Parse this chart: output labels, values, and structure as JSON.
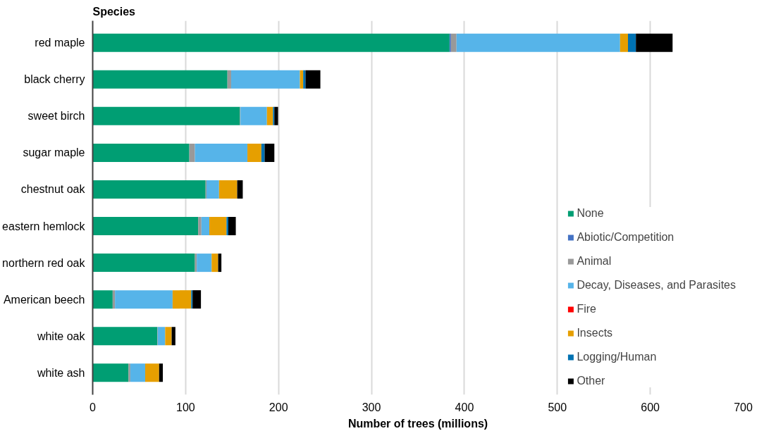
{
  "chart_data": {
    "type": "bar",
    "orientation": "horizontal",
    "stacked": true,
    "ylabel": "Species",
    "xlabel": "Number of trees (millions)",
    "categories": [
      "red maple",
      "black cherry",
      "sweet birch",
      "sugar maple",
      "chestnut oak",
      "eastern hemlock",
      "northern red oak",
      "American beech",
      "white oak",
      "white ash"
    ],
    "series": [
      {
        "name": "None",
        "color": "#009e73",
        "values": [
          384,
          145,
          158.5,
          104,
          121.5,
          113.5,
          110,
          21.5,
          69.5,
          38.5
        ]
      },
      {
        "name": "Abiotic/Competition",
        "color": "#4472c4",
        "values": [
          1.5,
          0,
          0,
          0,
          0,
          0,
          0,
          0,
          0,
          0
        ]
      },
      {
        "name": "Animal",
        "color": "#999999",
        "values": [
          6,
          4,
          0.5,
          6,
          1,
          3.5,
          2,
          2.5,
          0.5,
          2
        ]
      },
      {
        "name": "Decay, Diseases, and Parasites",
        "color": "#56b4e9",
        "values": [
          176,
          74,
          28.5,
          56.5,
          13.5,
          8.5,
          16,
          62,
          8,
          16
        ]
      },
      {
        "name": "Fire",
        "color": "#ff0000",
        "values": [
          null,
          0,
          0,
          0,
          0,
          0,
          0,
          0,
          0,
          0
        ]
      },
      {
        "name": "Insects",
        "color": "#e69f00",
        "values": [
          8.5,
          3.5,
          6.5,
          15,
          19.5,
          18.5,
          7,
          20,
          7,
          15
        ]
      },
      {
        "name": "Logging/Human",
        "color": "#0072b2",
        "values": [
          8.5,
          2.5,
          1.5,
          3.5,
          null,
          2,
          null,
          1.5,
          null,
          null
        ]
      },
      {
        "name": "Other",
        "color": "#000000",
        "values": [
          39.5,
          16,
          4,
          10.5,
          6,
          8,
          3.5,
          9,
          4,
          4
        ]
      }
    ],
    "xlim": [
      0,
      700
    ],
    "xticks": [
      0,
      100,
      200,
      300,
      400,
      500,
      600,
      700
    ],
    "grid": "x",
    "legend": "right"
  }
}
